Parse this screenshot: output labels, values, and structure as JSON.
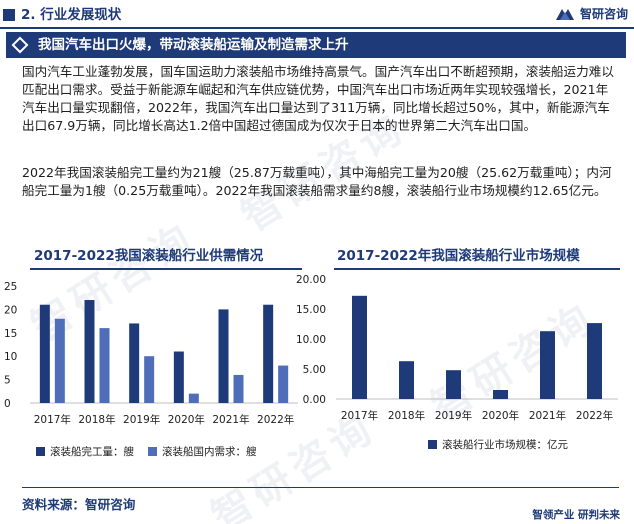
{
  "header": {
    "section_title": "2. 行业发展现状",
    "logo_text": "智研咨询"
  },
  "banner": {
    "title": "我国汽车出口火爆，带动滚装船运输及制造需求上升"
  },
  "body": {
    "paragraph1": "国内汽车工业蓬勃发展，国车国运助力滚装船市场维持高景气。国产汽车出口不断超预期，滚装船运力难以匹配出口需求。受益于新能源车崛起和汽车供应链优势，中国汽车出口市场近两年实现较强增长，2021年汽车出口量实现翻倍，2022年，我国汽车出口量达到了311万辆，同比增长超过50%，其中，新能源汽车出口67.9万辆，同比增长高达1.2倍中国超过德国成为仅次于日本的世界第二大汽车出口国。",
    "paragraph2": "2022年我国滚装船完工量约为21艘（25.87万载重吨），其中海船完工量为20艘（25.62万载重吨）；内河船完工量为1艘（0.25万载重吨）。2022年我国滚装船需求量约8艘，滚装船行业市场规模约12.65亿元。"
  },
  "colors": {
    "brand": "#1e3a78",
    "series_dark": "#1e3a78",
    "series_light": "#4f6db8"
  },
  "chart_data": [
    {
      "type": "bar",
      "title": "2017-2022我国滚装船行业供需情况",
      "categories": [
        "2017年",
        "2018年",
        "2019年",
        "2020年",
        "2021年",
        "2022年"
      ],
      "series": [
        {
          "name": "滚装船完工量：艘",
          "values": [
            21,
            22,
            17,
            11,
            20,
            21
          ]
        },
        {
          "name": "滚装船国内需求：艘",
          "values": [
            18,
            16,
            10,
            2,
            6,
            8
          ]
        }
      ],
      "ylim": [
        0,
        25
      ],
      "yticks": [
        "0",
        "5",
        "10",
        "15",
        "20",
        "25"
      ],
      "legend": "bottom",
      "grid": false
    },
    {
      "type": "bar",
      "title": "2017-2022年我国滚装船行业市场规模",
      "categories": [
        "2017年",
        "2018年",
        "2019年",
        "2020年",
        "2021年",
        "2022年"
      ],
      "series": [
        {
          "name": "滚装船行业市场规模：亿元",
          "values": [
            17.2,
            6.3,
            4.8,
            1.5,
            11.3,
            12.65
          ]
        }
      ],
      "ylim": [
        0,
        20
      ],
      "yticks": [
        "0.00",
        "5.00",
        "10.00",
        "15.00",
        "20.00"
      ],
      "legend": "bottom",
      "grid": false
    }
  ],
  "watermark": {
    "text": "智研咨询",
    "sub": "www.chyxx.com"
  },
  "footer": {
    "source": "资料来源：智研咨询",
    "slogan": "智领产业  研判未来"
  }
}
